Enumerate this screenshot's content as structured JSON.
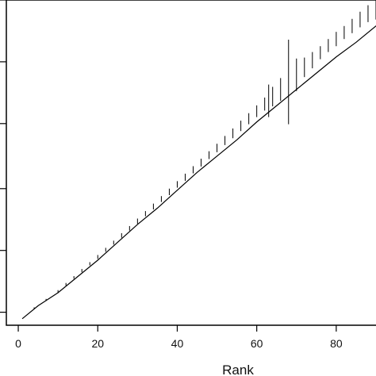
{
  "chart_data": {
    "type": "line",
    "title": "",
    "xlabel": "Rank",
    "ylabel": "",
    "xlim": [
      -3,
      92
    ],
    "ylim": [
      0,
      1
    ],
    "x_ticks": [
      0,
      20,
      40,
      60,
      80
    ],
    "x_tick_labels": [
      "0",
      "20",
      "40",
      "60",
      "80"
    ],
    "y_ticks": [
      0.04,
      0.23,
      0.42,
      0.62,
      0.81,
      1.0
    ],
    "y_tick_labels": [
      "",
      "",
      "",
      "",
      "",
      ""
    ],
    "grid": false,
    "legend": "none",
    "line_color": "#000000",
    "series": [
      {
        "x": [
          1,
          5,
          10,
          15,
          20,
          25,
          30,
          35,
          40,
          45,
          50,
          55,
          60,
          65,
          70,
          75,
          80,
          85,
          90,
          92
        ],
        "values": [
          0.02,
          0.06,
          0.1,
          0.15,
          0.2,
          0.255,
          0.31,
          0.36,
          0.415,
          0.47,
          0.52,
          0.57,
          0.625,
          0.675,
          0.725,
          0.775,
          0.825,
          0.87,
          0.92,
          0.935
        ]
      }
    ],
    "error_bars": {
      "x": [
        4,
        7,
        10,
        12,
        14,
        16,
        18,
        20,
        22,
        24,
        26,
        28,
        30,
        32,
        34,
        36,
        38,
        40,
        42,
        44,
        46,
        48,
        50,
        52,
        54,
        56,
        58,
        60,
        62,
        63,
        64,
        66,
        68,
        70,
        72,
        74,
        76,
        78,
        80,
        82,
        84,
        86,
        88,
        90,
        91
      ],
      "center": [
        0.052,
        0.078,
        0.104,
        0.126,
        0.147,
        0.168,
        0.189,
        0.21,
        0.232,
        0.254,
        0.276,
        0.298,
        0.32,
        0.343,
        0.365,
        0.388,
        0.41,
        0.433,
        0.455,
        0.478,
        0.5,
        0.523,
        0.545,
        0.568,
        0.59,
        0.613,
        0.635,
        0.658,
        0.68,
        0.69,
        0.703,
        0.725,
        0.748,
        0.77,
        0.793,
        0.815,
        0.838,
        0.86,
        0.88,
        0.9,
        0.92,
        0.94,
        0.958,
        0.975,
        0.985
      ],
      "half_width": [
        0.003,
        0.003,
        0.004,
        0.004,
        0.004,
        0.005,
        0.005,
        0.006,
        0.006,
        0.006,
        0.007,
        0.007,
        0.008,
        0.008,
        0.009,
        0.009,
        0.01,
        0.01,
        0.011,
        0.011,
        0.012,
        0.012,
        0.013,
        0.014,
        0.015,
        0.016,
        0.017,
        0.018,
        0.02,
        0.05,
        0.03,
        0.035,
        0.13,
        0.05,
        0.03,
        0.025,
        0.02,
        0.02,
        0.022,
        0.02,
        0.022,
        0.024,
        0.026,
        0.035,
        0.045
      ]
    }
  }
}
